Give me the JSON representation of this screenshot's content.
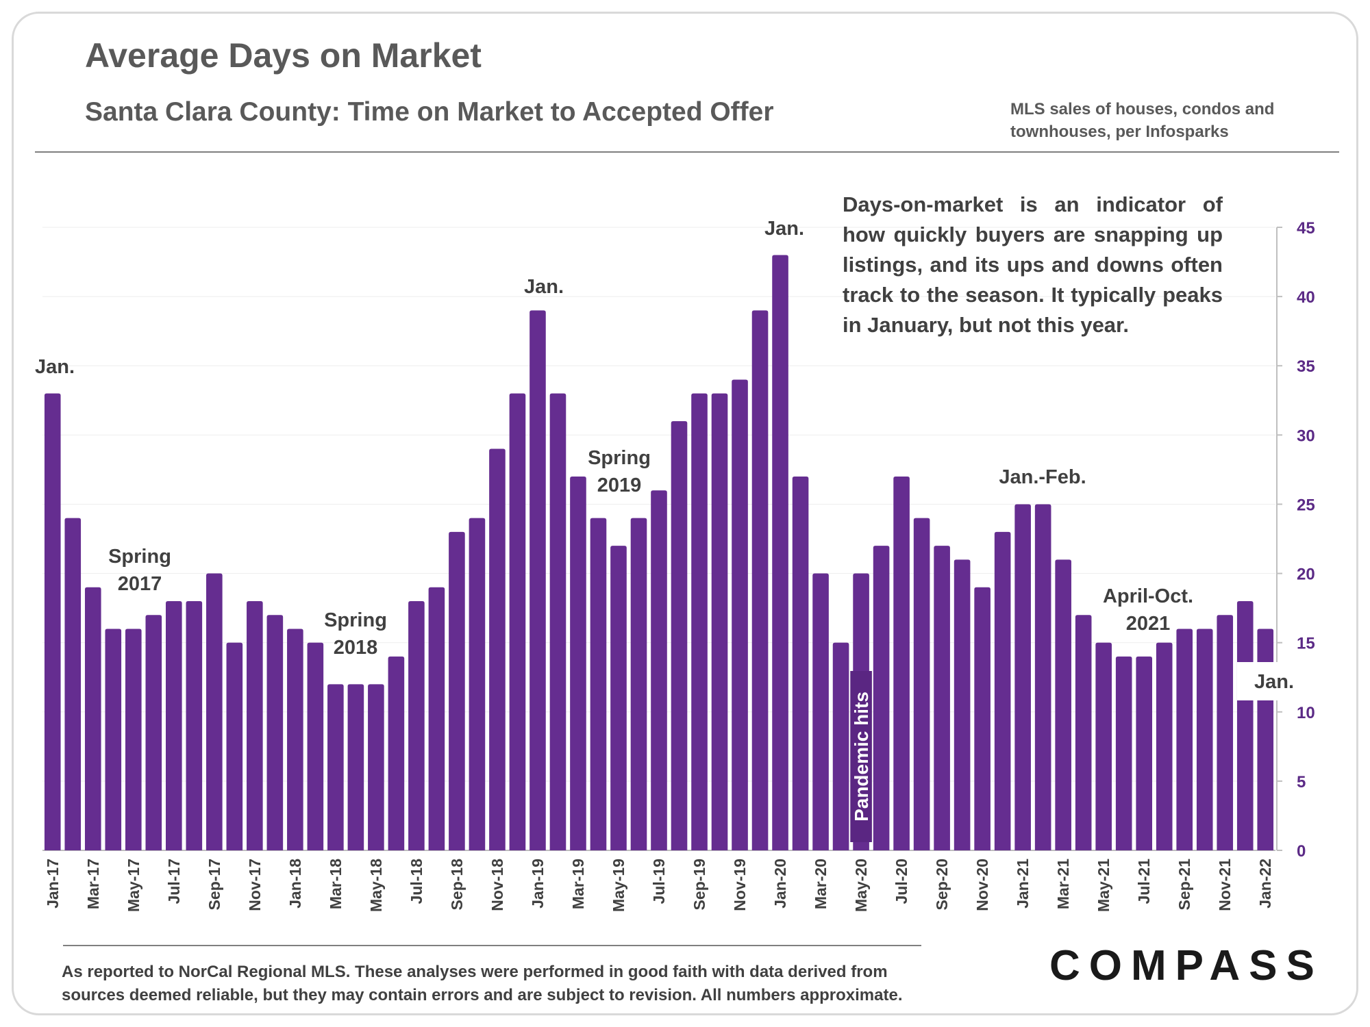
{
  "header": {
    "title": "Average Days on Market",
    "subtitle": "Santa Clara County: Time on Market to Accepted Offer",
    "source_line1": "MLS sales of houses, condos and",
    "source_line2": "townhouses, per Infosparks"
  },
  "annotation_text": "Days-on-market is an indicator of how quickly buyers are snapping up listings, and its ups and downs often track to the season. It typically peaks in January, but not this year.",
  "footer": {
    "line1": "As reported to NorCal Regional MLS. These analyses were performed in good faith with data derived from",
    "line2": "sources deemed reliable, but they may contain errors and are subject to revision. All numbers approximate.",
    "logo": "COMPASS"
  },
  "colors": {
    "bar": "#652d90",
    "axis_text": "#5b2a86"
  },
  "chart_data": {
    "type": "bar",
    "categories": [
      "Jan-17",
      "Feb-17",
      "Mar-17",
      "Apr-17",
      "May-17",
      "Jun-17",
      "Jul-17",
      "Aug-17",
      "Sep-17",
      "Oct-17",
      "Nov-17",
      "Dec-17",
      "Jan-18",
      "Feb-18",
      "Mar-18",
      "Apr-18",
      "May-18",
      "Jun-18",
      "Jul-18",
      "Aug-18",
      "Sep-18",
      "Oct-18",
      "Nov-18",
      "Dec-18",
      "Jan-19",
      "Feb-19",
      "Mar-19",
      "Apr-19",
      "May-19",
      "Jun-19",
      "Jul-19",
      "Aug-19",
      "Sep-19",
      "Oct-19",
      "Nov-19",
      "Dec-19",
      "Jan-20",
      "Feb-20",
      "Mar-20",
      "Apr-20",
      "May-20",
      "Jun-20",
      "Jul-20",
      "Aug-20",
      "Sep-20",
      "Oct-20",
      "Nov-20",
      "Dec-20",
      "Jan-21",
      "Feb-21",
      "Mar-21",
      "Apr-21",
      "May-21",
      "Jun-21",
      "Jul-21",
      "Aug-21",
      "Sep-21",
      "Oct-21",
      "Nov-21",
      "Dec-21",
      "Jan-22"
    ],
    "tick_labels": [
      "Jan-17",
      "Mar-17",
      "May-17",
      "Jul-17",
      "Sep-17",
      "Nov-17",
      "Jan-18",
      "Mar-18",
      "May-18",
      "Jul-18",
      "Sep-18",
      "Nov-18",
      "Jan-19",
      "Mar-19",
      "May-19",
      "Jul-19",
      "Sep-19",
      "Nov-19",
      "Jan-20",
      "Mar-20",
      "May-20",
      "Jul-20",
      "Sep-20",
      "Nov-20",
      "Jan-21",
      "Mar-21",
      "May-21",
      "Jul-21",
      "Sep-21",
      "Nov-21",
      "Jan-22"
    ],
    "values": [
      33,
      24,
      19,
      16,
      16,
      17,
      18,
      18,
      20,
      15,
      18,
      17,
      16,
      15,
      12,
      12,
      12,
      14,
      18,
      19,
      23,
      24,
      29,
      33,
      39,
      33,
      27,
      24,
      22,
      24,
      26,
      31,
      33,
      33,
      34,
      39,
      43,
      27,
      20,
      15,
      20,
      22,
      27,
      24,
      22,
      21,
      19,
      23,
      25,
      25,
      21,
      17,
      15,
      14,
      14,
      15,
      16,
      16,
      17,
      18,
      16
    ],
    "ylim": [
      0,
      45
    ],
    "yticks": [
      0,
      5,
      10,
      15,
      20,
      25,
      30,
      35,
      40,
      45
    ],
    "y_axis_side": "right",
    "grid": true,
    "annotations": [
      {
        "index": 0,
        "lines": [
          "Jan."
        ]
      },
      {
        "index": 4,
        "lines": [
          "Spring",
          "2017"
        ]
      },
      {
        "index": 15,
        "lines": [
          "Spring",
          "2018"
        ]
      },
      {
        "index": 24,
        "lines": [
          "Jan."
        ]
      },
      {
        "index": 28,
        "lines": [
          "Spring",
          "2019"
        ]
      },
      {
        "index": 36,
        "lines": [
          "Jan."
        ]
      },
      {
        "index": 40,
        "lines": [
          "Pandemic hits"
        ]
      },
      {
        "index": 48,
        "lines": [
          "Jan.-Feb."
        ]
      },
      {
        "index": 55,
        "lines": [
          "April-Oct.",
          "2021"
        ]
      },
      {
        "index": 60,
        "lines": [
          "Jan."
        ]
      }
    ]
  }
}
